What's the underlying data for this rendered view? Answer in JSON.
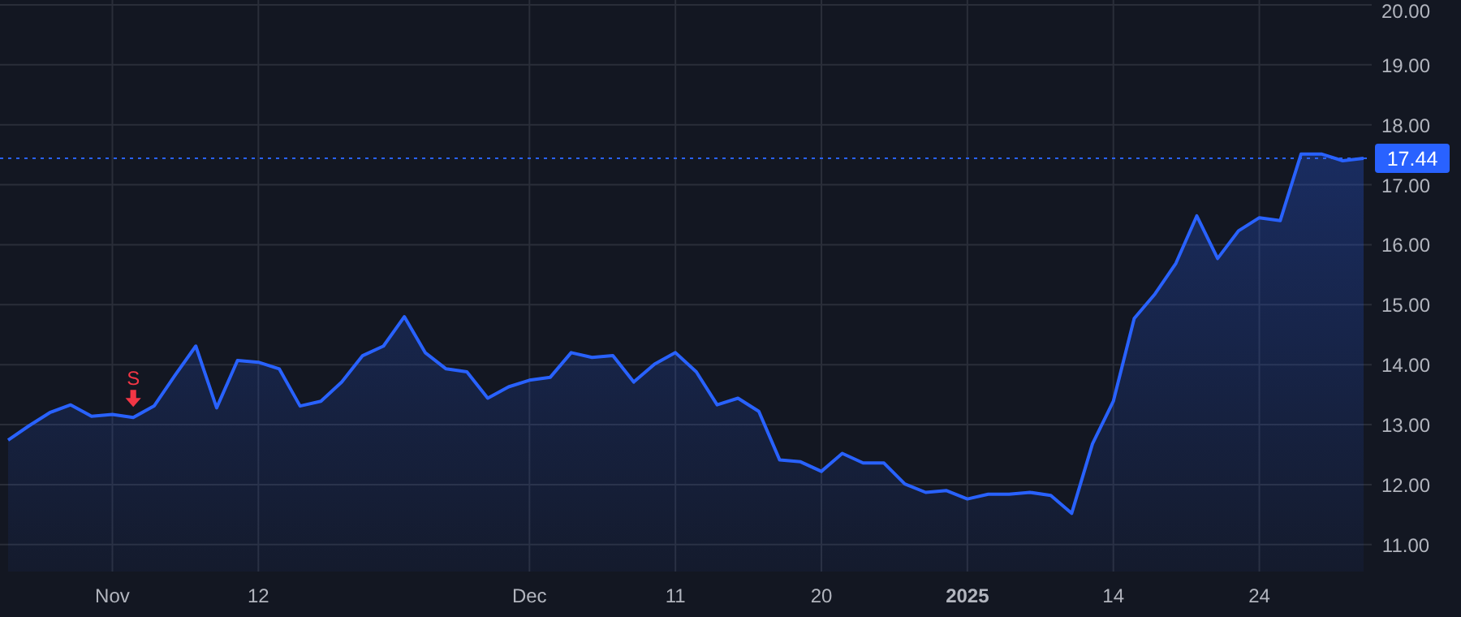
{
  "chart_data": {
    "type": "area",
    "categories": [
      null,
      null,
      null,
      null,
      null,
      "Nov",
      null,
      null,
      null,
      null,
      null,
      null,
      "12",
      null,
      null,
      null,
      null,
      null,
      null,
      null,
      null,
      null,
      null,
      null,
      null,
      "Dec",
      null,
      null,
      null,
      null,
      null,
      null,
      "11",
      null,
      null,
      null,
      null,
      null,
      null,
      "20",
      null,
      null,
      null,
      null,
      null,
      null,
      "2025",
      null,
      null,
      null,
      null,
      null,
      null,
      "14",
      null,
      null,
      null,
      null,
      null,
      null,
      "24",
      null,
      null,
      null,
      null,
      null
    ],
    "series": [
      {
        "color": "#2962ff",
        "values": [
          12.74,
          12.98,
          13.2,
          13.33,
          13.14,
          13.17,
          13.12,
          13.31,
          13.82,
          14.31,
          13.28,
          14.07,
          14.04,
          13.93,
          13.31,
          13.39,
          13.71,
          14.15,
          14.31,
          14.8,
          14.2,
          13.93,
          13.88,
          13.44,
          13.63,
          13.74,
          13.79,
          14.2,
          14.12,
          14.15,
          13.71,
          14.01,
          14.2,
          13.88,
          13.33,
          13.44,
          13.22,
          12.41,
          12.38,
          12.22,
          12.52,
          12.36,
          12.36,
          12.01,
          11.87,
          11.9,
          11.76,
          11.84,
          11.84,
          11.87,
          11.82,
          11.52,
          12.68,
          13.39,
          14.77,
          15.18,
          15.69,
          16.48,
          15.77,
          16.23,
          16.45,
          16.4,
          17.51,
          17.51,
          17.4,
          17.44
        ]
      }
    ],
    "ylim": [
      10.55,
      20.08
    ],
    "yticks": [
      {
        "value": 11,
        "label": "11.00"
      },
      {
        "value": 12,
        "label": "12.00"
      },
      {
        "value": 13,
        "label": "13.00"
      },
      {
        "value": 14,
        "label": "14.00"
      },
      {
        "value": 15,
        "label": "15.00"
      },
      {
        "value": 16,
        "label": "16.00"
      },
      {
        "value": 17,
        "label": "17.00"
      },
      {
        "value": 18,
        "label": "18.00"
      },
      {
        "value": 19,
        "label": "19.00"
      },
      {
        "value": 20,
        "label": "20.00"
      }
    ],
    "grid": true,
    "ref_lines": [
      {
        "axis": "y",
        "value": 17.44,
        "label": "17.44",
        "color": "#2962ff",
        "line_style": "dotted"
      }
    ],
    "annotations": [
      {
        "text": "S",
        "y": 13.12
      }
    ]
  }
}
